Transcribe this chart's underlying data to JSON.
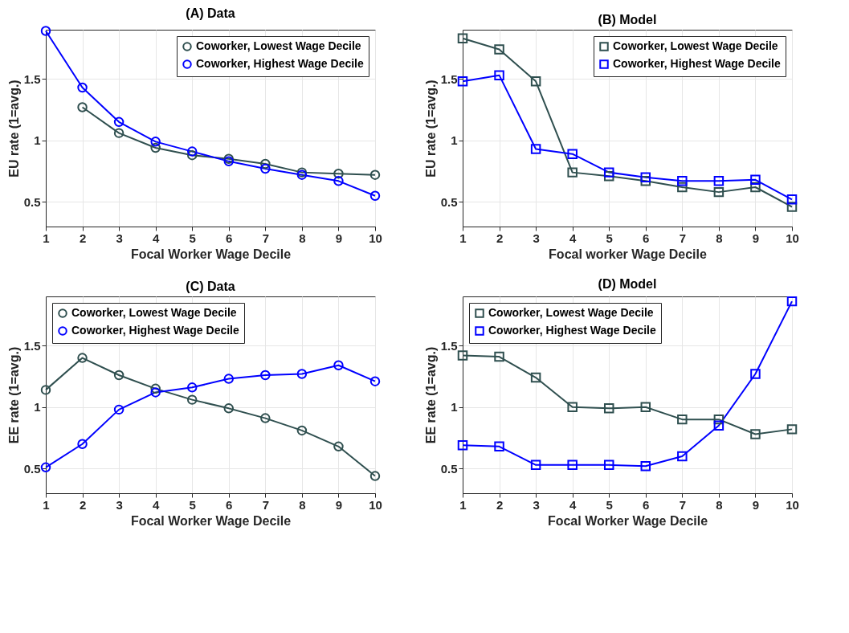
{
  "chart_data": [
    {
      "type": "line",
      "title": "(A) Data",
      "xlabel": "Focal Worker Wage Decile",
      "ylabel": "EU rate (1=avg.)",
      "x": [
        1,
        2,
        3,
        4,
        5,
        6,
        7,
        8,
        9,
        10
      ],
      "xlim": [
        1,
        10
      ],
      "xticks": [
        1,
        2,
        3,
        4,
        5,
        6,
        7,
        8,
        9,
        10
      ],
      "ylim": [
        0.3,
        1.9
      ],
      "yticks": [
        0.5,
        1,
        1.5
      ],
      "grid": true,
      "legend": "top right",
      "marker": "circle",
      "series": [
        {
          "name": "Coworker, Lowest Wage Decile",
          "color": "#2f4f4f",
          "values": [
            null,
            1.27,
            1.06,
            0.94,
            0.88,
            0.85,
            0.81,
            0.74,
            0.73,
            0.72
          ]
        },
        {
          "name": "Coworker, Highest Wage Decile",
          "color": "#0000ff",
          "values": [
            1.89,
            1.43,
            1.15,
            0.99,
            0.91,
            0.83,
            0.77,
            0.72,
            0.67,
            0.55
          ]
        }
      ]
    },
    {
      "type": "line",
      "title": "(B) Model",
      "xlabel": "Focal worker Wage Decile",
      "ylabel": "EU rate (1=avg.)",
      "x": [
        1,
        2,
        3,
        4,
        5,
        6,
        7,
        8,
        9,
        10
      ],
      "xlim": [
        1,
        10
      ],
      "xticks": [
        1,
        2,
        3,
        4,
        5,
        6,
        7,
        8,
        9,
        10
      ],
      "ylim": [
        0.3,
        1.9
      ],
      "yticks": [
        0.5,
        1,
        1.5
      ],
      "grid": true,
      "legend": "top right",
      "marker": "square",
      "series": [
        {
          "name": "Coworker, Lowest Wage Decile",
          "color": "#2f4f4f",
          "values": [
            1.83,
            1.74,
            1.48,
            0.74,
            0.71,
            0.67,
            0.62,
            0.58,
            0.62,
            0.46
          ]
        },
        {
          "name": "Coworker, Highest Wage Decile",
          "color": "#0000ff",
          "values": [
            1.48,
            1.53,
            0.93,
            0.89,
            0.74,
            0.7,
            0.67,
            0.67,
            0.68,
            0.52
          ]
        }
      ]
    },
    {
      "type": "line",
      "title": "(C) Data",
      "xlabel": "Focal Worker Wage Decile",
      "ylabel": "EE rate (1=avg.)",
      "x": [
        1,
        2,
        3,
        4,
        5,
        6,
        7,
        8,
        9,
        10
      ],
      "xlim": [
        1,
        10
      ],
      "xticks": [
        1,
        2,
        3,
        4,
        5,
        6,
        7,
        8,
        9,
        10
      ],
      "ylim": [
        0.3,
        1.9
      ],
      "yticks": [
        0.5,
        1,
        1.5
      ],
      "grid": true,
      "legend": "top left",
      "marker": "circle",
      "series": [
        {
          "name": "Coworker, Lowest Wage Decile",
          "color": "#2f4f4f",
          "values": [
            1.14,
            1.4,
            1.26,
            1.15,
            1.06,
            0.99,
            0.91,
            0.81,
            0.68,
            0.44
          ]
        },
        {
          "name": "Coworker, Highest Wage Decile",
          "color": "#0000ff",
          "values": [
            0.51,
            0.7,
            0.98,
            1.12,
            1.16,
            1.23,
            1.26,
            1.27,
            1.34,
            1.21
          ]
        }
      ]
    },
    {
      "type": "line",
      "title": "(D) Model",
      "xlabel": "Focal Worker Wage Decile",
      "ylabel": "EE rate (1=avg.)",
      "x": [
        1,
        2,
        3,
        4,
        5,
        6,
        7,
        8,
        9,
        10
      ],
      "xlim": [
        1,
        10
      ],
      "xticks": [
        1,
        2,
        3,
        4,
        5,
        6,
        7,
        8,
        9,
        10
      ],
      "ylim": [
        0.3,
        1.9
      ],
      "yticks": [
        0.5,
        1,
        1.5
      ],
      "grid": true,
      "legend": "top left",
      "marker": "square",
      "series": [
        {
          "name": "Coworker, Lowest Wage Decile",
          "color": "#2f4f4f",
          "values": [
            1.42,
            1.41,
            1.24,
            1.0,
            0.99,
            1.0,
            0.9,
            0.9,
            0.78,
            0.82
          ]
        },
        {
          "name": "Coworker, Highest Wage Decile",
          "color": "#0000ff",
          "values": [
            0.69,
            0.68,
            0.53,
            0.53,
            0.53,
            0.52,
            0.6,
            0.85,
            1.27,
            1.86
          ]
        }
      ]
    }
  ]
}
